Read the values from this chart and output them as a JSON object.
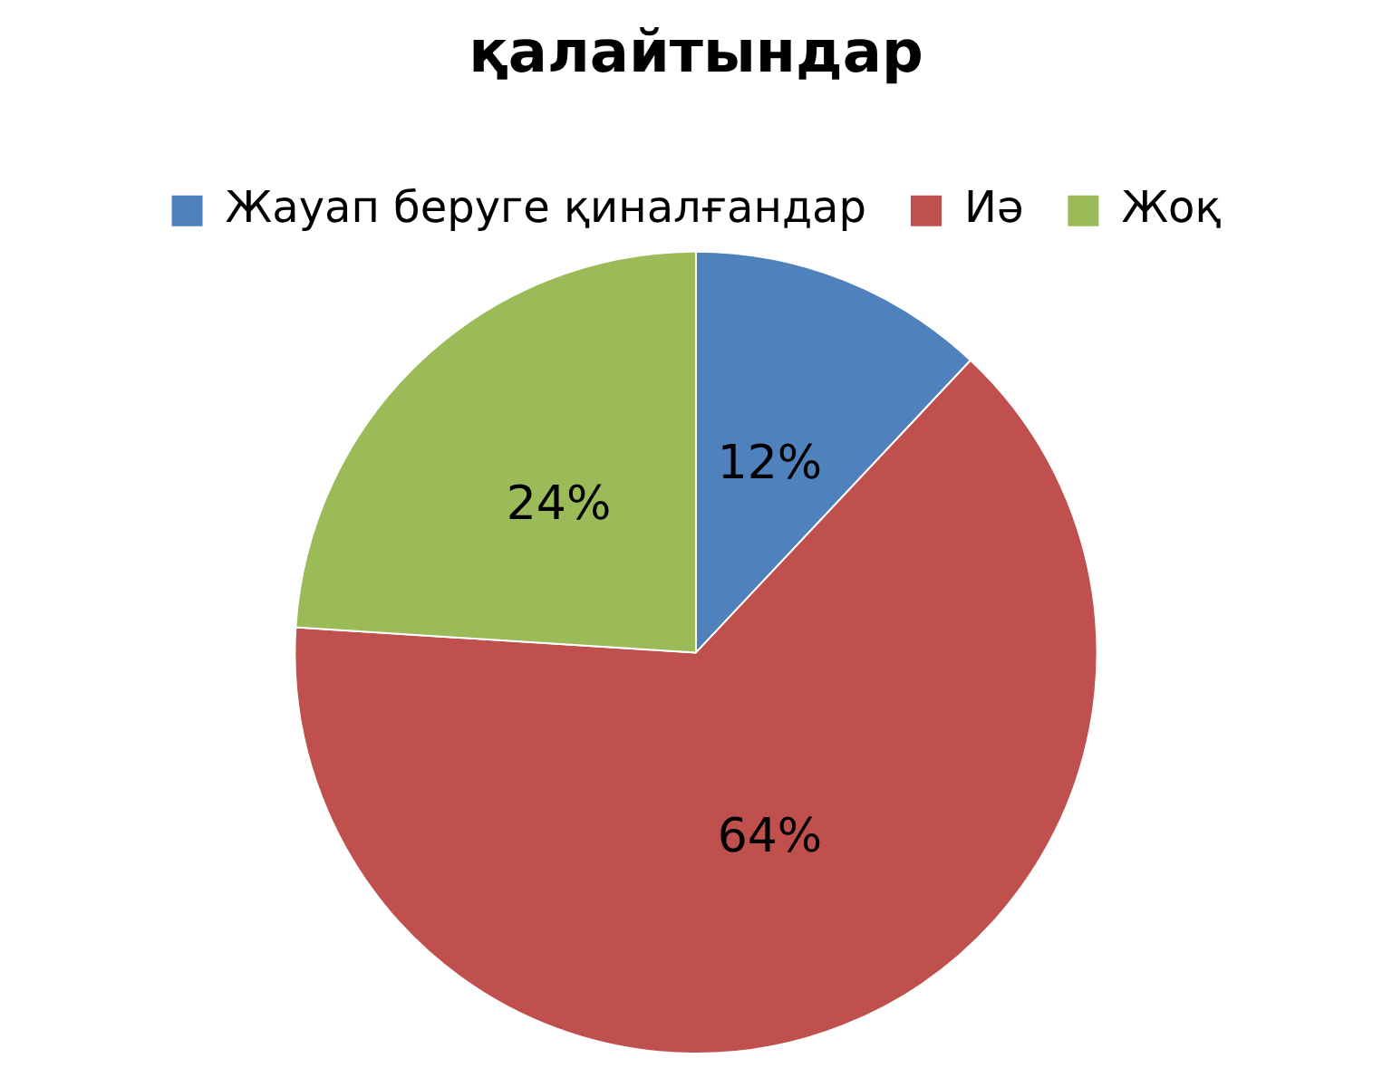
{
  "chart_data": {
    "type": "pie",
    "title": "қалайтындар",
    "categories": [
      "Жауап беруге қиналғандар",
      "Иә",
      "Жоқ"
    ],
    "values": [
      12,
      64,
      24
    ],
    "colors": [
      "#4f81bd",
      "#c0504d",
      "#9bbb59"
    ],
    "value_labels": [
      "12%",
      "64%",
      "24%"
    ],
    "legend": "top"
  }
}
